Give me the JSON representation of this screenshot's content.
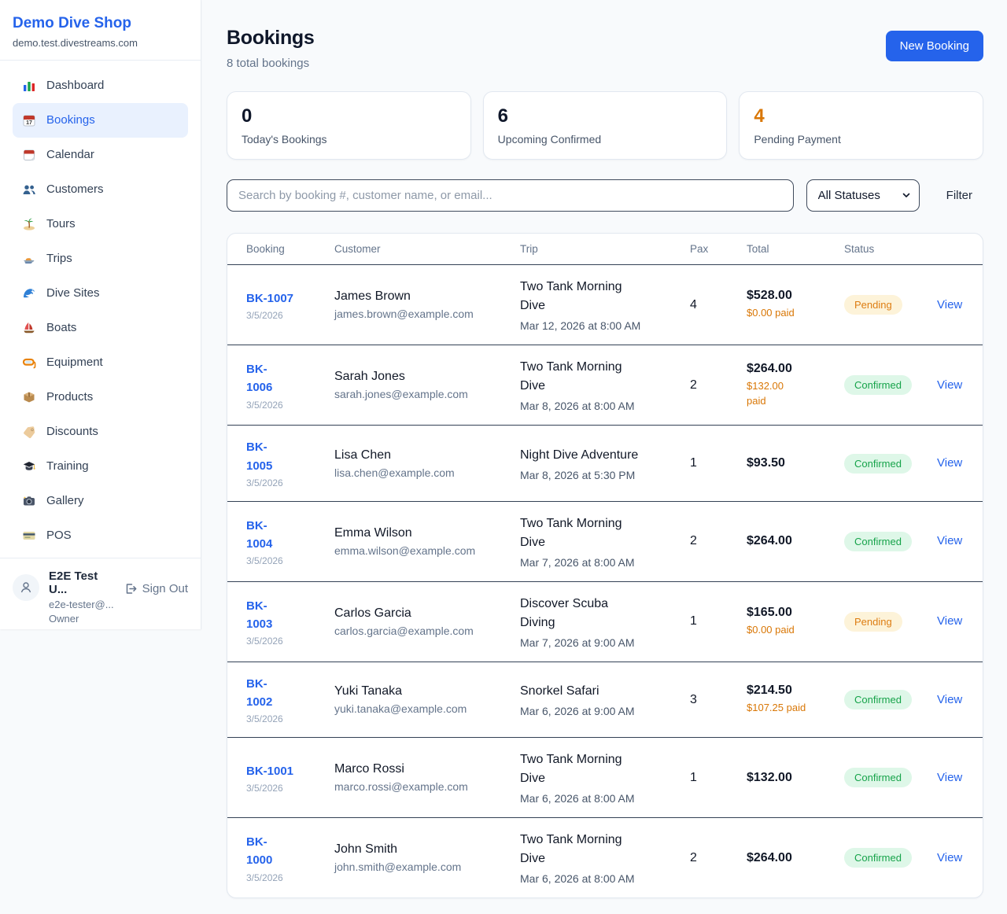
{
  "sidebar": {
    "brand": {
      "name": "Demo Dive Shop",
      "domain": "demo.test.divestreams.com"
    },
    "nav": [
      {
        "label": "Dashboard",
        "icon": "bar-chart",
        "active": false
      },
      {
        "label": "Bookings",
        "icon": "calendar-date",
        "active": true
      },
      {
        "label": "Calendar",
        "icon": "tear-off-calendar",
        "active": false
      },
      {
        "label": "Customers",
        "icon": "people",
        "active": false
      },
      {
        "label": "Tours",
        "icon": "island",
        "active": false
      },
      {
        "label": "Trips",
        "icon": "speedboat",
        "active": false
      },
      {
        "label": "Dive Sites",
        "icon": "wave",
        "active": false
      },
      {
        "label": "Boats",
        "icon": "sailboat",
        "active": false
      },
      {
        "label": "Equipment",
        "icon": "diving-mask",
        "active": false
      },
      {
        "label": "Products",
        "icon": "package",
        "active": false
      },
      {
        "label": "Discounts",
        "icon": "tag",
        "active": false
      },
      {
        "label": "Training",
        "icon": "graduation-cap",
        "active": false
      },
      {
        "label": "Gallery",
        "icon": "camera",
        "active": false
      },
      {
        "label": "POS",
        "icon": "credit-card",
        "active": false
      }
    ],
    "user": {
      "name": "E2E Test U...",
      "email": "e2e-tester@...",
      "role": "Owner",
      "sign_out_label": "Sign Out"
    }
  },
  "header": {
    "title": "Bookings",
    "subtitle": "8 total bookings",
    "new_booking_label": "New Booking"
  },
  "stats": [
    {
      "value": "0",
      "label": "Today's Bookings",
      "color": "#0f172a"
    },
    {
      "value": "6",
      "label": "Upcoming Confirmed",
      "color": "#0f172a"
    },
    {
      "value": "4",
      "label": "Pending Payment",
      "color": "#d97706"
    }
  ],
  "filters": {
    "search_placeholder": "Search by booking #, customer name, or email...",
    "status_selected": "All Statuses",
    "filter_label": "Filter"
  },
  "table": {
    "columns": [
      "Booking",
      "Customer",
      "Trip",
      "Pax",
      "Total",
      "Status"
    ],
    "view_label": "View",
    "rows": [
      {
        "id": "BK-1007",
        "date": "3/5/2026",
        "customer": "James Brown",
        "email": "james.brown@example.com",
        "trip": "Two Tank Morning\nDive",
        "trip_time": "Mar 12, 2026 at 8:00 AM",
        "pax": "4",
        "total": "$528.00",
        "paid": "$0.00 paid",
        "status": "Pending"
      },
      {
        "id": "BK-\n1006",
        "date": "3/5/2026",
        "customer": "Sarah Jones",
        "email": "sarah.jones@example.com",
        "trip": "Two Tank Morning\nDive",
        "trip_time": "Mar 8, 2026 at 8:00 AM",
        "pax": "2",
        "total": "$264.00",
        "paid": "$132.00\npaid",
        "status": "Confirmed"
      },
      {
        "id": "BK-\n1005",
        "date": "3/5/2026",
        "customer": "Lisa Chen",
        "email": "lisa.chen@example.com",
        "trip": "Night Dive Adventure",
        "trip_time": "Mar 8, 2026 at 5:30 PM",
        "pax": "1",
        "total": "$93.50",
        "paid": "",
        "status": "Confirmed"
      },
      {
        "id": "BK-\n1004",
        "date": "3/5/2026",
        "customer": "Emma Wilson",
        "email": "emma.wilson@example.com",
        "trip": "Two Tank Morning\nDive",
        "trip_time": "Mar 7, 2026 at 8:00 AM",
        "pax": "2",
        "total": "$264.00",
        "paid": "",
        "status": "Confirmed"
      },
      {
        "id": "BK-\n1003",
        "date": "3/5/2026",
        "customer": "Carlos Garcia",
        "email": "carlos.garcia@example.com",
        "trip": "Discover Scuba\nDiving",
        "trip_time": "Mar 7, 2026 at 9:00 AM",
        "pax": "1",
        "total": "$165.00",
        "paid": "$0.00 paid",
        "status": "Pending"
      },
      {
        "id": "BK-\n1002",
        "date": "3/5/2026",
        "customer": "Yuki Tanaka",
        "email": "yuki.tanaka@example.com",
        "trip": "Snorkel Safari",
        "trip_time": "Mar 6, 2026 at 9:00 AM",
        "pax": "3",
        "total": "$214.50",
        "paid": "$107.25 paid",
        "status": "Confirmed"
      },
      {
        "id": "BK-1001",
        "date": "3/5/2026",
        "customer": "Marco Rossi",
        "email": "marco.rossi@example.com",
        "trip": "Two Tank Morning\nDive",
        "trip_time": "Mar 6, 2026 at 8:00 AM",
        "pax": "1",
        "total": "$132.00",
        "paid": "",
        "status": "Confirmed"
      },
      {
        "id": "BK-\n1000",
        "date": "3/5/2026",
        "customer": "John Smith",
        "email": "john.smith@example.com",
        "trip": "Two Tank Morning\nDive",
        "trip_time": "Mar 6, 2026 at 8:00 AM",
        "pax": "2",
        "total": "$264.00",
        "paid": "",
        "status": "Confirmed"
      }
    ]
  },
  "colors": {
    "accent_blue": "#2563eb",
    "pending_orange": "#d97706",
    "confirmed_green": "#16a34a",
    "pending_badge_bg": "#fdf3d9",
    "confirmed_badge_bg": "#def7e8"
  }
}
